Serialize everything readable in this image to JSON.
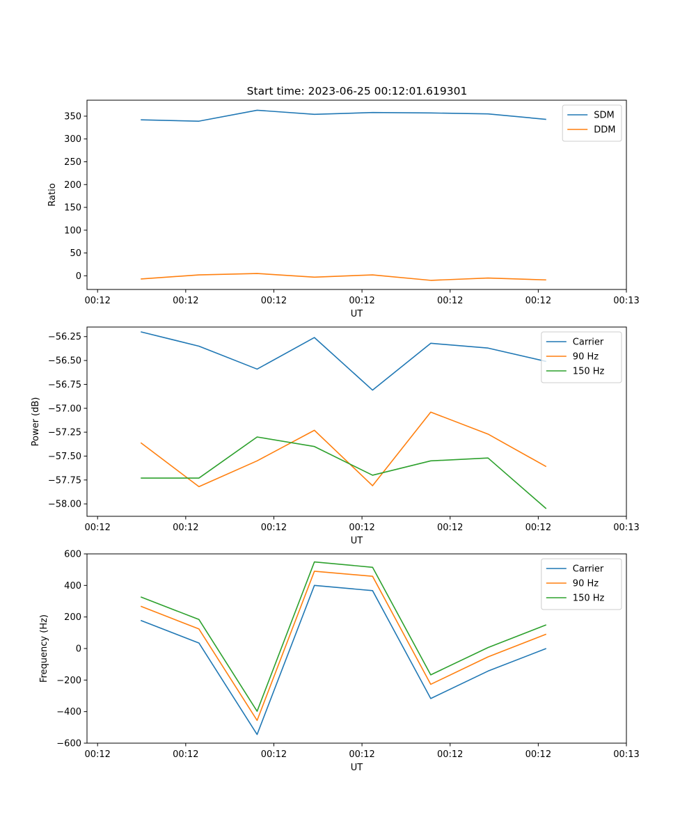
{
  "figure": {
    "title": "Start time: 2023-06-25 00:12:01.619301"
  },
  "chart_data": [
    {
      "type": "line",
      "xlabel": "UT",
      "ylabel": "Ratio",
      "x_tick_labels": [
        "00:12",
        "00:12",
        "00:12",
        "00:12",
        "00:12",
        "00:12",
        "00:13"
      ],
      "x_ticks": [
        0,
        1,
        2,
        3,
        4,
        5,
        6
      ],
      "x": [
        0.49,
        1.15,
        1.81,
        2.46,
        3.12,
        3.78,
        4.43,
        5.09
      ],
      "xlim": [
        -0.12,
        6.0
      ],
      "ylim": [
        -30,
        385
      ],
      "y_ticks": [
        0,
        50,
        100,
        150,
        200,
        250,
        300,
        350
      ],
      "legend_position": "upper right",
      "grid": false,
      "series": [
        {
          "name": "SDM",
          "color": "#1f77b4",
          "values": [
            342,
            339,
            363,
            354,
            358,
            357,
            355,
            343
          ]
        },
        {
          "name": "DDM",
          "color": "#ff7f0e",
          "values": [
            -7,
            2,
            5,
            -3,
            2,
            -10,
            -5,
            -9
          ]
        }
      ]
    },
    {
      "type": "line",
      "xlabel": "UT",
      "ylabel": "Power (dB)",
      "x_tick_labels": [
        "00:12",
        "00:12",
        "00:12",
        "00:12",
        "00:12",
        "00:12",
        "00:13"
      ],
      "x_ticks": [
        0,
        1,
        2,
        3,
        4,
        5,
        6
      ],
      "x": [
        0.49,
        1.15,
        1.81,
        2.46,
        3.12,
        3.78,
        4.43,
        5.09
      ],
      "xlim": [
        -0.12,
        6.0
      ],
      "ylim": [
        -58.13,
        -56.15
      ],
      "y_ticks": [
        -58.0,
        -57.75,
        -57.5,
        -57.25,
        -57.0,
        -56.75,
        -56.5,
        -56.25
      ],
      "y_tick_labels": [
        "−58.00",
        "−57.75",
        "−57.50",
        "−57.25",
        "−57.00",
        "−56.75",
        "−56.50",
        "−56.25"
      ],
      "legend_position": "upper right",
      "grid": false,
      "series": [
        {
          "name": "Carrier",
          "color": "#1f77b4",
          "values": [
            -56.2,
            -56.35,
            -56.59,
            -56.26,
            -56.81,
            -56.32,
            -56.37,
            -56.51
          ]
        },
        {
          "name": "90 Hz",
          "color": "#ff7f0e",
          "values": [
            -57.36,
            -57.82,
            -57.55,
            -57.23,
            -57.81,
            -57.04,
            -57.27,
            -57.61
          ]
        },
        {
          "name": "150 Hz",
          "color": "#2ca02c",
          "values": [
            -57.73,
            -57.73,
            -57.3,
            -57.4,
            -57.7,
            -57.55,
            -57.52,
            -58.05
          ]
        }
      ]
    },
    {
      "type": "line",
      "xlabel": "UT",
      "ylabel": "Frequency (Hz)",
      "x_tick_labels": [
        "00:12",
        "00:12",
        "00:12",
        "00:12",
        "00:12",
        "00:12",
        "00:13"
      ],
      "x_ticks": [
        0,
        1,
        2,
        3,
        4,
        5,
        6
      ],
      "x": [
        0.49,
        1.15,
        1.81,
        2.46,
        3.12,
        3.78,
        4.43,
        5.09
      ],
      "xlim": [
        -0.12,
        6.0
      ],
      "ylim": [
        -600,
        600
      ],
      "y_ticks": [
        -600,
        -400,
        -200,
        0,
        200,
        400,
        600
      ],
      "y_tick_labels": [
        "−600",
        "−400",
        "−200",
        "0",
        "200",
        "400",
        "600"
      ],
      "legend_position": "upper right",
      "grid": false,
      "series": [
        {
          "name": "Carrier",
          "color": "#1f77b4",
          "values": [
            178,
            35,
            -545,
            400,
            367,
            -317,
            -143,
            0
          ]
        },
        {
          "name": "90 Hz",
          "color": "#ff7f0e",
          "values": [
            268,
            124,
            -456,
            490,
            458,
            -227,
            -53,
            91
          ]
        },
        {
          "name": "150 Hz",
          "color": "#2ca02c",
          "values": [
            327,
            184,
            -398,
            549,
            515,
            -167,
            6,
            150
          ]
        }
      ]
    }
  ]
}
